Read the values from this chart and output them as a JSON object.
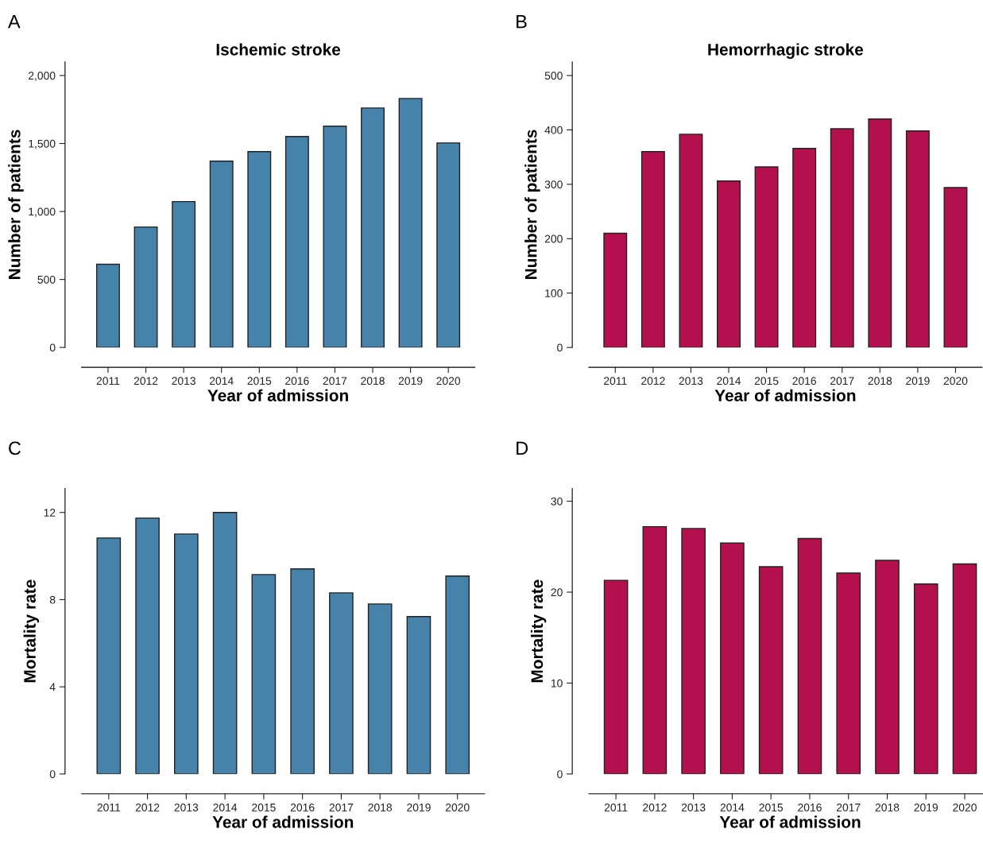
{
  "chart_data": [
    {
      "type": "bar",
      "title": "Ischemic stroke",
      "xlabel": "Year of admission",
      "ylabel": "Number of patients",
      "annotations": [
        "A"
      ],
      "categories": [
        "2011",
        "2012",
        "2013",
        "2014",
        "2015",
        "2016",
        "2017",
        "2018",
        "2019",
        "2020"
      ],
      "color": "#4682aa",
      "values": [
        612,
        886,
        1073,
        1370,
        1440,
        1551,
        1627,
        1761,
        1831,
        1504
      ],
      "ylim": [
        0,
        2100
      ],
      "yticks": [
        0,
        {
          "value": 500,
          "label": "500"
        },
        {
          "value": 1000,
          "label": "1,000"
        },
        {
          "value": 1500,
          "label": "1,500"
        },
        {
          "value": 2000,
          "label": "2,000"
        }
      ],
      "grid": false,
      "legend": false
    },
    {
      "type": "bar",
      "title": "Hemorrhagic stroke",
      "xlabel": "Year of admission",
      "ylabel": "Number of patients",
      "annotations": [
        "B"
      ],
      "categories": [
        "2011",
        "2012",
        "2013",
        "2014",
        "2015",
        "2016",
        "2017",
        "2018",
        "2019",
        "2020"
      ],
      "color": "#b5104e",
      "values": [
        210,
        360,
        392,
        306,
        332,
        366,
        402,
        420,
        398,
        294
      ],
      "ylim": [
        0,
        525
      ],
      "yticks": [
        0,
        100,
        200,
        300,
        400,
        500
      ],
      "grid": false,
      "legend": false
    },
    {
      "type": "bar",
      "xlabel": "Year of admission",
      "ylabel": "Mortality rate",
      "annotations": [
        "C"
      ],
      "categories": [
        "2011",
        "2012",
        "2013",
        "2014",
        "2015",
        "2016",
        "2017",
        "2018",
        "2019",
        "2020"
      ],
      "color": "#4682aa",
      "values": [
        10.83,
        11.74,
        11.01,
        12.0,
        9.15,
        9.41,
        8.31,
        7.8,
        7.22,
        9.08
      ],
      "ylim": [
        0,
        13.1
      ],
      "yticks": [
        0,
        4,
        8,
        12
      ],
      "grid": false,
      "legend": false
    },
    {
      "type": "bar",
      "xlabel": "Year of admission",
      "ylabel": "Mortality rate",
      "annotations": [
        "D"
      ],
      "categories": [
        "2011",
        "2012",
        "2013",
        "2014",
        "2015",
        "2016",
        "2017",
        "2018",
        "2019",
        "2020"
      ],
      "color": "#b5104e",
      "values": [
        21.3,
        27.2,
        27.0,
        25.4,
        22.8,
        25.9,
        22.1,
        23.5,
        20.9,
        23.1
      ],
      "ylim": [
        0,
        31.4
      ],
      "yticks": [
        0,
        10,
        20,
        30
      ],
      "grid": false,
      "legend": false
    }
  ]
}
